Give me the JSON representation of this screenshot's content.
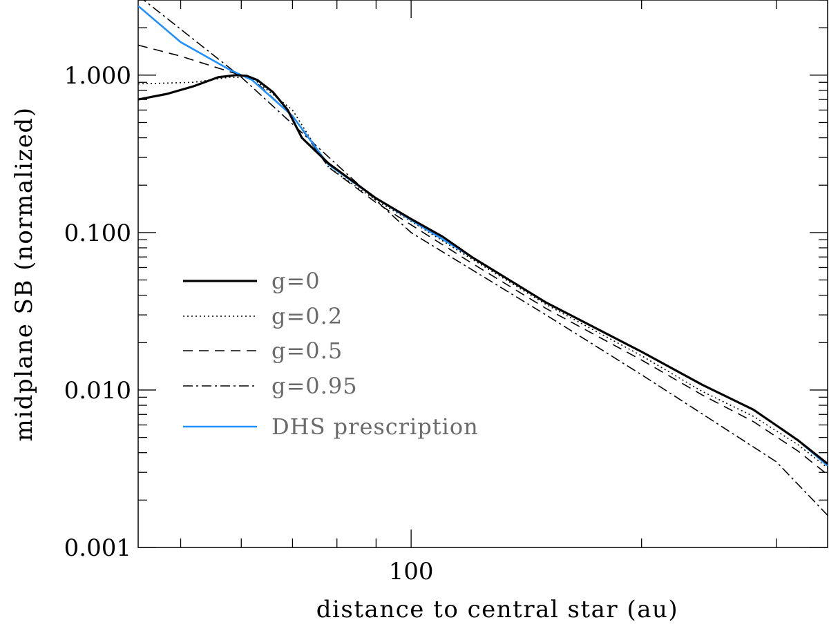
{
  "chart_data": {
    "type": "line",
    "xlabel": "distance to central star (au)",
    "ylabel": "midplane SB (normalized)",
    "xscale": "log",
    "yscale": "log",
    "xlim": [
      44,
      350
    ],
    "ylim": [
      0.001,
      3.0
    ],
    "x_ticklabels": [
      {
        "value": 100,
        "label": "100"
      }
    ],
    "x_minor_ticks": [
      50,
      60,
      70,
      80,
      90,
      200,
      300
    ],
    "y_ticklabels": [
      {
        "value": 0.001,
        "label": "0.001"
      },
      {
        "value": 0.01,
        "label": "0.010"
      },
      {
        "value": 0.1,
        "label": "0.100"
      },
      {
        "value": 1.0,
        "label": "1.000"
      }
    ],
    "legend": {
      "placement": "center-left"
    },
    "grid": false,
    "series": [
      {
        "name": "g=0",
        "style": "solid",
        "color": "#000000",
        "x": [
          44,
          48,
          52,
          56,
          59,
          61,
          63,
          66,
          69,
          72,
          78,
          90,
          100,
          110,
          120,
          150,
          200,
          240,
          280,
          320,
          350
        ],
        "y": [
          0.7,
          0.76,
          0.85,
          0.97,
          1.0,
          0.99,
          0.93,
          0.78,
          0.6,
          0.4,
          0.275,
          0.165,
          0.122,
          0.094,
          0.07,
          0.036,
          0.0175,
          0.0108,
          0.0075,
          0.0048,
          0.0034
        ]
      },
      {
        "name": "g=0.2",
        "style": "dotted",
        "color": "#000000",
        "x": [
          44,
          52,
          58,
          62,
          70,
          78,
          90,
          100,
          120,
          150,
          200,
          240,
          280,
          320,
          350
        ],
        "y": [
          0.88,
          0.9,
          0.97,
          0.96,
          0.6,
          0.26,
          0.16,
          0.118,
          0.068,
          0.035,
          0.0165,
          0.0098,
          0.0068,
          0.0045,
          0.0032
        ]
      },
      {
        "name": "g=0.5",
        "style": "dashed",
        "color": "#000000",
        "x": [
          44,
          50,
          58,
          62,
          70,
          78,
          90,
          100,
          120,
          150,
          200,
          240,
          280,
          320,
          350
        ],
        "y": [
          1.55,
          1.32,
          1.05,
          0.95,
          0.55,
          0.26,
          0.155,
          0.112,
          0.064,
          0.033,
          0.0155,
          0.0093,
          0.0063,
          0.0041,
          0.0029
        ]
      },
      {
        "name": "g=0.95",
        "style": "dashdot",
        "color": "#000000",
        "x": [
          44,
          60,
          100,
          150,
          200,
          300,
          350
        ],
        "y": [
          3.2,
          0.97,
          0.1,
          0.03,
          0.0125,
          0.0035,
          0.0016
        ]
      },
      {
        "name": "DHS prescription",
        "style": "solid",
        "color": "#1e90ff",
        "x": [
          44,
          50,
          58,
          62,
          70,
          78,
          90,
          100,
          120,
          150,
          200,
          240,
          280,
          320,
          350
        ],
        "y": [
          2.75,
          1.62,
          1.08,
          0.93,
          0.55,
          0.27,
          0.165,
          0.12,
          0.07,
          0.036,
          0.0175,
          0.0108,
          0.0075,
          0.0048,
          0.0033
        ]
      }
    ]
  }
}
